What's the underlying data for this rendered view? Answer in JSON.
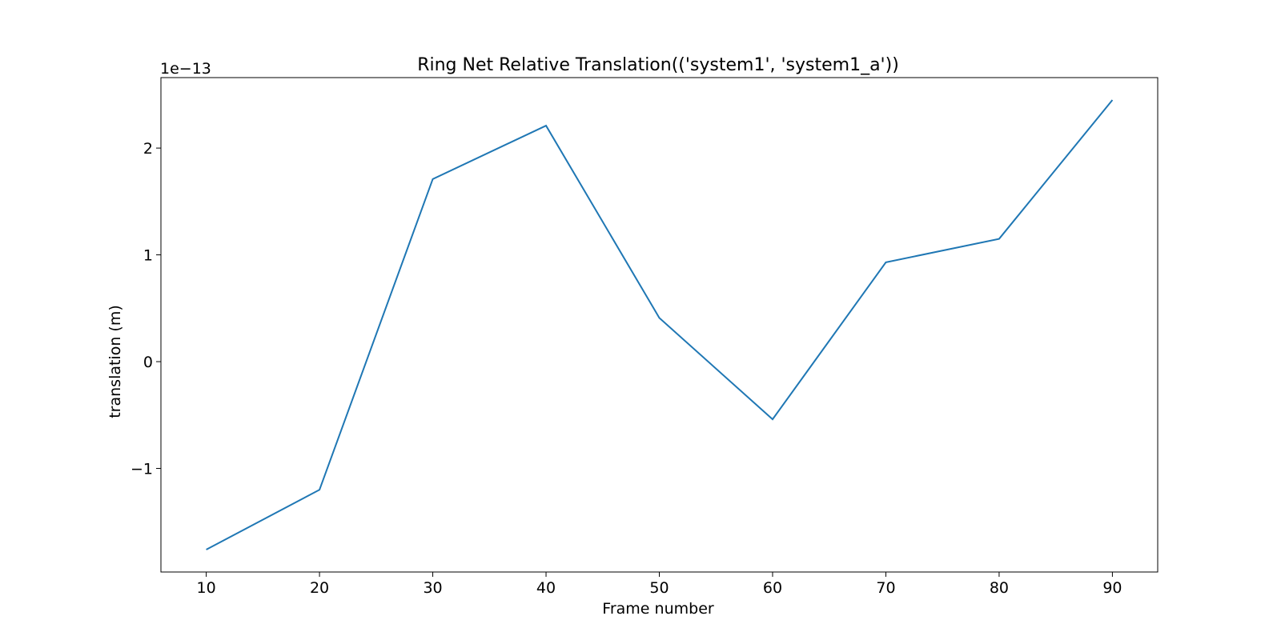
{
  "chart_data": {
    "type": "line",
    "title": "Ring Net Relative Translation(('system1', 'system1_a'))",
    "xlabel": "Frame number",
    "ylabel": "translation (m)",
    "y_offset_label": "1e−13",
    "x": [
      10,
      20,
      30,
      40,
      50,
      60,
      70,
      80,
      90
    ],
    "series": [
      {
        "values": [
          -1.76,
          -1.2,
          1.71,
          2.21,
          0.41,
          -0.54,
          0.93,
          1.15,
          2.45
        ]
      }
    ],
    "xlim": [
      6,
      94
    ],
    "ylim": [
      -1.97,
      2.66
    ],
    "xticks": [
      10,
      20,
      30,
      40,
      50,
      60,
      70,
      80,
      90
    ],
    "yticks": [
      -1,
      0,
      1,
      2
    ],
    "ytick_labels": [
      "−1",
      "0",
      "1",
      "2"
    ],
    "grid": false,
    "line_color": "#1f77b4"
  }
}
